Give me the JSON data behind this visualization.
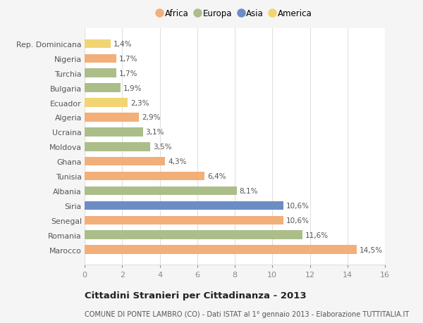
{
  "categories": [
    "Rep. Dominicana",
    "Nigeria",
    "Turchia",
    "Bulgaria",
    "Ecuador",
    "Algeria",
    "Ucraina",
    "Moldova",
    "Ghana",
    "Tunisia",
    "Albania",
    "Siria",
    "Senegal",
    "Romania",
    "Marocco"
  ],
  "values": [
    1.4,
    1.7,
    1.7,
    1.9,
    2.3,
    2.9,
    3.1,
    3.5,
    4.3,
    6.4,
    8.1,
    10.6,
    10.6,
    11.6,
    14.5
  ],
  "labels": [
    "1,4%",
    "1,7%",
    "1,7%",
    "1,9%",
    "2,3%",
    "2,9%",
    "3,1%",
    "3,5%",
    "4,3%",
    "6,4%",
    "8,1%",
    "10,6%",
    "10,6%",
    "11,6%",
    "14,5%"
  ],
  "continents": [
    "America",
    "Africa",
    "Europa",
    "Europa",
    "America",
    "Africa",
    "Europa",
    "Europa",
    "Africa",
    "Africa",
    "Europa",
    "Asia",
    "Africa",
    "Europa",
    "Africa"
  ],
  "colors": {
    "Africa": "#F2AF7A",
    "Europa": "#ABBE8A",
    "Asia": "#6B8DC4",
    "America": "#F2D472"
  },
  "legend_order": [
    "Africa",
    "Europa",
    "Asia",
    "America"
  ],
  "title": "Cittadini Stranieri per Cittadinanza - 2013",
  "subtitle": "COMUNE DI PONTE LAMBRO (CO) - Dati ISTAT al 1° gennaio 2013 - Elaborazione TUTTITALIA.IT",
  "xlim": [
    0,
    16
  ],
  "xticks": [
    0,
    2,
    4,
    6,
    8,
    10,
    12,
    14,
    16
  ],
  "plot_bg": "#ffffff",
  "fig_bg": "#f5f5f5",
  "grid_color": "#e0e0e0",
  "label_color": "#555555",
  "tick_color": "#888888"
}
